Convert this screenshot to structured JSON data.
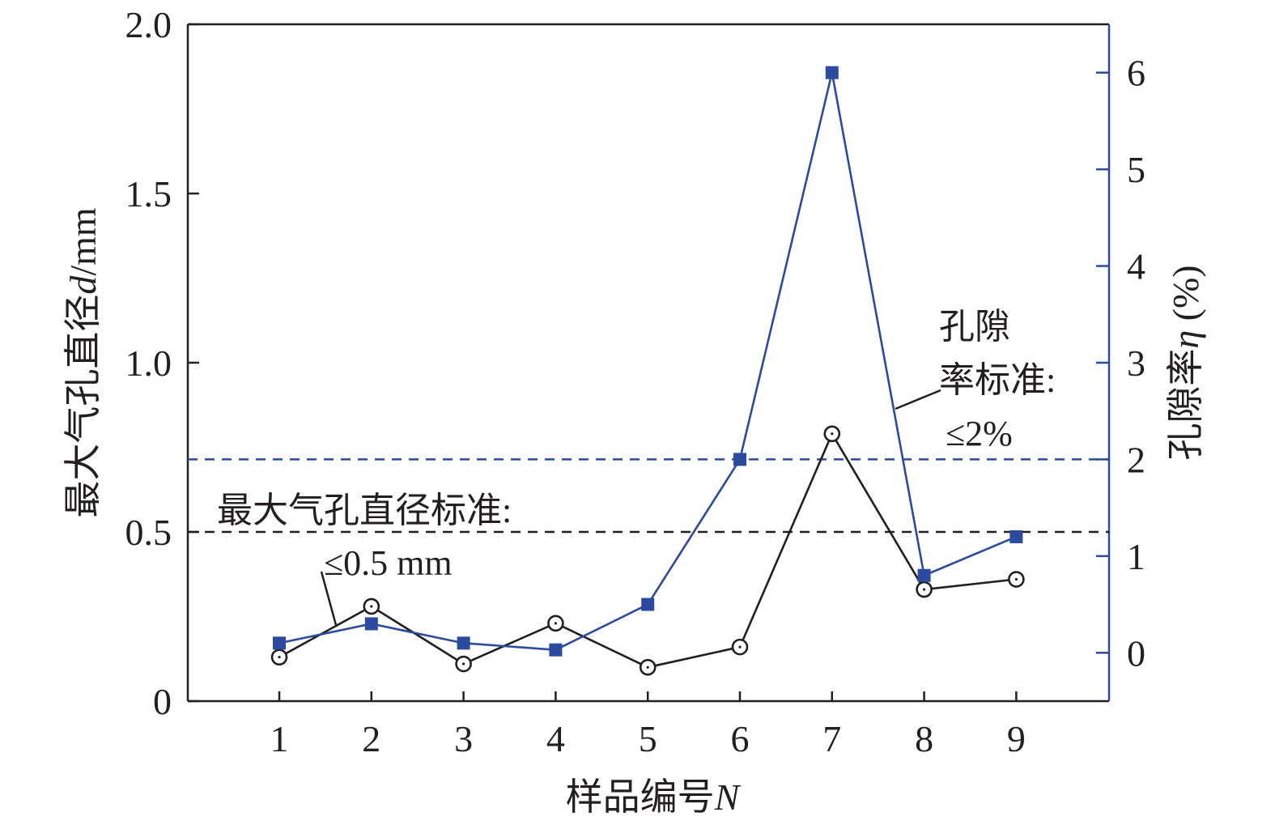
{
  "chart_data": {
    "type": "line",
    "x_ticks": [
      "1",
      "2",
      "3",
      "4",
      "5",
      "6",
      "7",
      "8",
      "9"
    ],
    "x_label": {
      "main": "样品编号",
      "var": "N"
    },
    "y_left": {
      "label_main": "最大气孔直径",
      "label_var": "d",
      "label_unit": "/mm",
      "ylim": [
        0,
        2.0
      ],
      "ticks": [
        0,
        0.5,
        1.0,
        1.5,
        2.0
      ],
      "tick_labels": [
        "0",
        "0.5",
        "1.0",
        "1.5",
        "2.0"
      ]
    },
    "y_right": {
      "label_main": "孔隙率",
      "label_var": "η",
      "label_unit": " (%)",
      "ylim": [
        -0.5,
        6.5
      ],
      "ticks": [
        0,
        1,
        2,
        3,
        4,
        5,
        6
      ],
      "tick_labels": [
        "0",
        "1",
        "2",
        "3",
        "4",
        "5",
        "6"
      ]
    },
    "series": [
      {
        "axis": "left",
        "marker": "circle",
        "color": "#231f20",
        "x": [
          1,
          2,
          3,
          4,
          5,
          6,
          7,
          8,
          9
        ],
        "values": [
          0.13,
          0.28,
          0.11,
          0.23,
          0.1,
          0.16,
          0.79,
          0.33,
          0.36
        ]
      },
      {
        "axis": "right",
        "marker": "square",
        "color": "#2b4aa0",
        "x": [
          1,
          2,
          3,
          4,
          5,
          6,
          7,
          8,
          9
        ],
        "values": [
          0.1,
          0.3,
          0.1,
          0.03,
          0.5,
          2.0,
          6.0,
          0.8,
          1.2
        ]
      }
    ],
    "reference_lines": [
      {
        "axis": "left",
        "value": 0.5,
        "color": "#231f20",
        "style": "dashed"
      },
      {
        "axis": "right",
        "value": 2.0,
        "color": "#2b4aa0",
        "style": "dashed"
      }
    ],
    "annotations": {
      "diameter_standard": {
        "line1": "最大气孔直径标准:",
        "line2": "≤0.5 mm"
      },
      "porosity_standard": {
        "line1": "孔隙",
        "line2": "率标准:",
        "line3": "≤2%"
      }
    },
    "colors": {
      "axis_left": "#231f20",
      "axis_right": "#2b4aa0"
    }
  }
}
